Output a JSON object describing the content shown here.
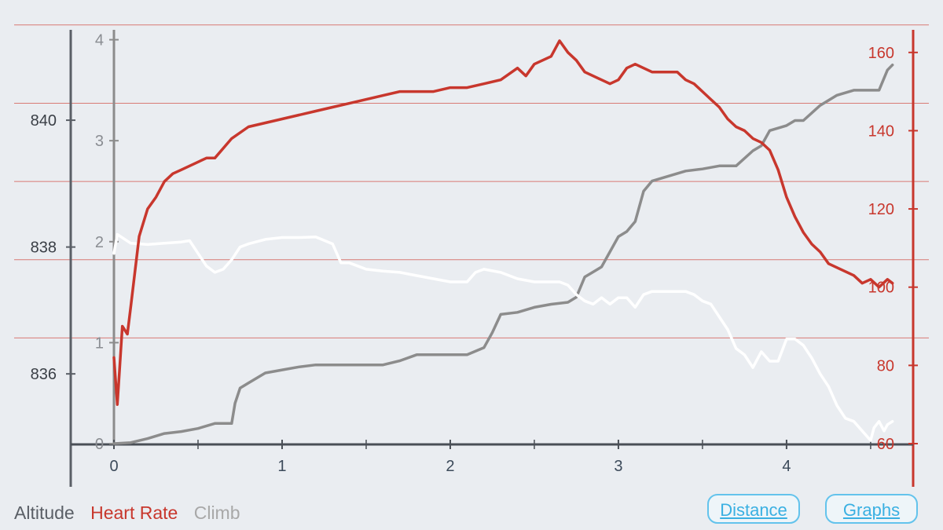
{
  "colors": {
    "background": "#eaedf1",
    "altitude": "#ffffff",
    "heart_rate": "#c8372d",
    "climb": "#8c8c8c",
    "altitude_axis": "#5a5f66",
    "button": "#3ab0e2"
  },
  "legend": {
    "altitude": "Altitude",
    "heart_rate": "Heart Rate",
    "climb": "Climb"
  },
  "buttons": {
    "distance": "Distance",
    "graphs": "Graphs"
  },
  "chart_data": {
    "type": "line",
    "x_ticks": [
      "0",
      "1",
      "2",
      "3",
      "4"
    ],
    "xlim": [
      0,
      4.65
    ],
    "axes": {
      "altitude": {
        "ticks": [
          "836",
          "838",
          "840"
        ],
        "ylim": [
          834.9,
          841.4
        ]
      },
      "climb": {
        "ticks": [
          "0",
          "1",
          "2",
          "3",
          "4"
        ],
        "ylim": [
          0,
          4.02
        ]
      },
      "heart_rate": {
        "ticks": [
          "60",
          "80",
          "100",
          "120",
          "140",
          "160"
        ],
        "ylim": [
          60,
          171
        ]
      }
    },
    "grid": "horizontal",
    "legend_position": "bottom-left",
    "series": [
      {
        "name": "Altitude",
        "axis": "altitude",
        "x": [
          0.0,
          0.02,
          0.1,
          0.2,
          0.3,
          0.4,
          0.45,
          0.5,
          0.55,
          0.6,
          0.65,
          0.7,
          0.75,
          0.8,
          0.9,
          1.0,
          1.1,
          1.2,
          1.3,
          1.35,
          1.4,
          1.45,
          1.5,
          1.6,
          1.7,
          1.8,
          1.9,
          2.0,
          2.1,
          2.15,
          2.2,
          2.3,
          2.4,
          2.5,
          2.6,
          2.65,
          2.7,
          2.75,
          2.8,
          2.85,
          2.9,
          2.95,
          3.0,
          3.05,
          3.1,
          3.15,
          3.2,
          3.3,
          3.4,
          3.45,
          3.5,
          3.55,
          3.6,
          3.65,
          3.7,
          3.75,
          3.8,
          3.85,
          3.9,
          3.95,
          4.0,
          4.05,
          4.1,
          4.15,
          4.2,
          4.25,
          4.3,
          4.35,
          4.4,
          4.45,
          4.5,
          4.52,
          4.55,
          4.58,
          4.6,
          4.63
        ],
        "y": [
          837.9,
          838.2,
          838.06,
          838.04,
          838.06,
          838.08,
          838.1,
          837.9,
          837.7,
          837.6,
          837.65,
          837.8,
          838.0,
          838.05,
          838.12,
          838.15,
          838.15,
          838.16,
          838.05,
          837.75,
          837.75,
          837.7,
          837.65,
          837.62,
          837.6,
          837.55,
          837.5,
          837.45,
          837.45,
          837.6,
          837.65,
          837.6,
          837.5,
          837.45,
          837.45,
          837.45,
          837.4,
          837.25,
          837.15,
          837.1,
          837.2,
          837.1,
          837.2,
          837.2,
          837.05,
          837.25,
          837.3,
          837.3,
          837.3,
          837.25,
          837.15,
          837.1,
          836.9,
          836.7,
          836.4,
          836.3,
          836.1,
          836.35,
          836.2,
          836.2,
          836.55,
          836.55,
          836.45,
          836.25,
          836.0,
          835.8,
          835.5,
          835.3,
          835.25,
          835.1,
          834.95,
          835.15,
          835.25,
          835.1,
          835.2,
          835.25
        ]
      },
      {
        "name": "Heart Rate",
        "axis": "heart_rate",
        "x": [
          0.0,
          0.02,
          0.05,
          0.08,
          0.1,
          0.15,
          0.2,
          0.25,
          0.3,
          0.35,
          0.4,
          0.45,
          0.5,
          0.55,
          0.6,
          0.7,
          0.8,
          0.9,
          1.0,
          1.1,
          1.2,
          1.3,
          1.4,
          1.5,
          1.6,
          1.7,
          1.8,
          1.9,
          2.0,
          2.1,
          2.2,
          2.3,
          2.4,
          2.45,
          2.5,
          2.6,
          2.65,
          2.7,
          2.75,
          2.8,
          2.9,
          2.95,
          3.0,
          3.05,
          3.1,
          3.15,
          3.2,
          3.3,
          3.35,
          3.4,
          3.45,
          3.5,
          3.55,
          3.6,
          3.65,
          3.7,
          3.75,
          3.8,
          3.85,
          3.9,
          3.95,
          4.0,
          4.05,
          4.1,
          4.15,
          4.2,
          4.25,
          4.3,
          4.35,
          4.4,
          4.45,
          4.5,
          4.55,
          4.6,
          4.63
        ],
        "y": [
          82,
          70,
          90,
          88,
          95,
          113,
          120,
          123,
          127,
          129,
          130,
          131,
          132,
          133,
          133,
          138,
          141,
          142,
          143,
          144,
          145,
          146,
          147,
          148,
          149,
          150,
          150,
          150,
          151,
          151,
          152,
          153,
          156,
          154,
          157,
          159,
          163,
          160,
          158,
          155,
          153,
          152,
          153,
          156,
          157,
          156,
          155,
          155,
          155,
          153,
          152,
          150,
          148,
          146,
          143,
          141,
          140,
          138,
          137,
          135,
          130,
          123,
          118,
          114,
          111,
          109,
          106,
          105,
          104,
          103,
          101,
          102,
          100,
          102,
          101
        ]
      },
      {
        "name": "Climb",
        "axis": "climb",
        "x": [
          0.0,
          0.1,
          0.2,
          0.3,
          0.4,
          0.5,
          0.6,
          0.7,
          0.72,
          0.75,
          0.8,
          0.9,
          1.0,
          1.1,
          1.2,
          1.3,
          1.4,
          1.5,
          1.6,
          1.7,
          1.8,
          1.9,
          2.0,
          2.1,
          2.2,
          2.25,
          2.3,
          2.4,
          2.5,
          2.6,
          2.7,
          2.75,
          2.8,
          2.85,
          2.9,
          2.95,
          3.0,
          3.05,
          3.1,
          3.15,
          3.2,
          3.3,
          3.4,
          3.5,
          3.6,
          3.7,
          3.8,
          3.85,
          3.9,
          4.0,
          4.05,
          4.1,
          4.2,
          4.3,
          4.4,
          4.45,
          4.5,
          4.55,
          4.6,
          4.63
        ],
        "y": [
          0.0,
          0.01,
          0.05,
          0.1,
          0.12,
          0.15,
          0.2,
          0.2,
          0.4,
          0.55,
          0.6,
          0.7,
          0.73,
          0.76,
          0.78,
          0.78,
          0.78,
          0.78,
          0.78,
          0.82,
          0.88,
          0.88,
          0.88,
          0.88,
          0.95,
          1.1,
          1.28,
          1.3,
          1.35,
          1.38,
          1.4,
          1.45,
          1.65,
          1.7,
          1.75,
          1.9,
          2.05,
          2.1,
          2.2,
          2.5,
          2.6,
          2.65,
          2.7,
          2.72,
          2.75,
          2.75,
          2.9,
          2.95,
          3.1,
          3.15,
          3.2,
          3.2,
          3.35,
          3.45,
          3.5,
          3.5,
          3.5,
          3.5,
          3.7,
          3.75
        ]
      }
    ]
  }
}
